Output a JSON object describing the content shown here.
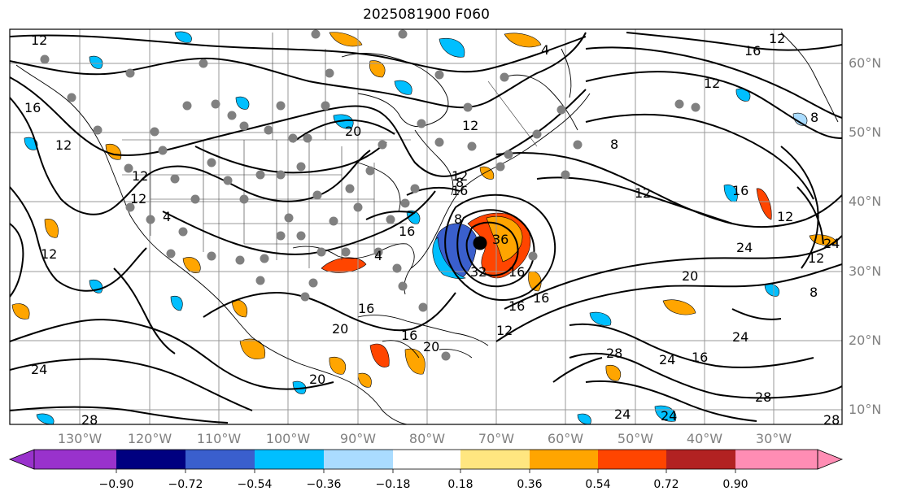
{
  "title": "2025081900 F060",
  "map": {
    "lon_labels": [
      "130°W",
      "120°W",
      "110°W",
      "100°W",
      "90°W",
      "80°W",
      "70°W",
      "60°W",
      "50°W",
      "40°W",
      "30°W"
    ],
    "lat_labels": [
      "60°N",
      "50°N",
      "40°N",
      "30°N",
      "20°N",
      "10°N"
    ],
    "contour_labels": [
      "12",
      "16",
      "12",
      "12",
      "4",
      "16",
      "12",
      "20",
      "12",
      "8",
      "12",
      "8",
      "16",
      "12",
      "4",
      "12",
      "12",
      "16",
      "8",
      "16",
      "24",
      "20",
      "12",
      "12",
      "8",
      "16",
      "24",
      "20",
      "16",
      "16",
      "8",
      "4",
      "16",
      "20",
      "12",
      "12",
      "16",
      "28",
      "24",
      "16",
      "24",
      "28",
      "24",
      "24",
      "28",
      "28",
      "24",
      "20",
      "32",
      "36"
    ],
    "low_center_marker": "black-dot-icon",
    "station_marker": "gray-dot-icon"
  },
  "colorbar": {
    "ticks": [
      "−0.90",
      "−0.72",
      "−0.54",
      "−0.36",
      "−0.18",
      "0.18",
      "0.36",
      "0.54",
      "0.72",
      "0.90"
    ],
    "colors": [
      "#9932cc",
      "#000080",
      "#3a5fcd",
      "#00bfff",
      "#aadcff",
      "#ffffff",
      "#ffe680",
      "#ffa500",
      "#ff4500",
      "#b22222",
      "#ff8db4"
    ]
  }
}
